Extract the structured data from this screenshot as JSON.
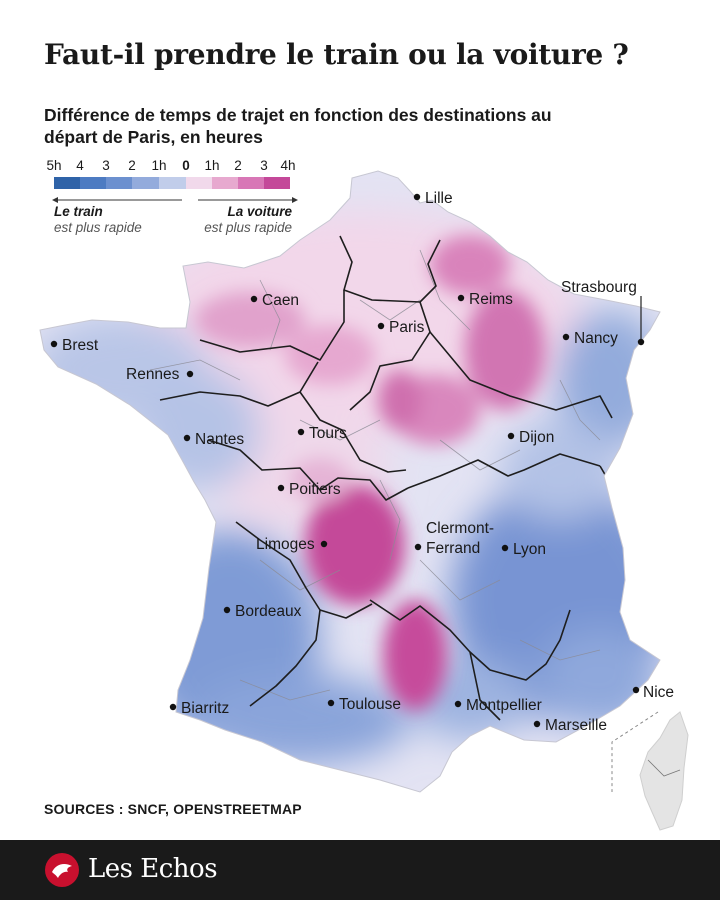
{
  "title": "Faut-il prendre le train ou la voiture ?",
  "subtitle": "Différence de temps de trajet en fonction des destinations au départ de Paris, en heures",
  "legend": {
    "ticks": [
      "5h",
      "4",
      "3",
      "2",
      "1h",
      "0",
      "1h",
      "2",
      "3",
      "4h"
    ],
    "colors": [
      "#2f63a8",
      "#4d7bc2",
      "#6c90cf",
      "#93abdc",
      "#c1cdea",
      "#f1d9eb",
      "#e7a9cf",
      "#d877b6",
      "#c44899",
      "#a81f7c"
    ],
    "left_title": "Le train",
    "left_sub": "est plus rapide",
    "right_title": "La voiture",
    "right_sub": "est plus rapide"
  },
  "cities": [
    {
      "name": "Lille"
    },
    {
      "name": "Caen"
    },
    {
      "name": "Reims"
    },
    {
      "name": "Strasbourg"
    },
    {
      "name": "Paris"
    },
    {
      "name": "Brest"
    },
    {
      "name": "Nancy"
    },
    {
      "name": "Rennes"
    },
    {
      "name": "Nantes"
    },
    {
      "name": "Tours"
    },
    {
      "name": "Dijon"
    },
    {
      "name": "Poitiers"
    },
    {
      "name": "Clermont-"
    },
    {
      "name": "Ferrand"
    },
    {
      "name": "Limoges"
    },
    {
      "name": "Lyon"
    },
    {
      "name": "Bordeaux"
    },
    {
      "name": "Nice"
    },
    {
      "name": "Biarritz"
    },
    {
      "name": "Toulouse"
    },
    {
      "name": "Montpellier"
    },
    {
      "name": "Marseille"
    }
  ],
  "sources": "SOURCES : SNCF, OPENSTREETMAP",
  "brand": "Les Echos"
}
